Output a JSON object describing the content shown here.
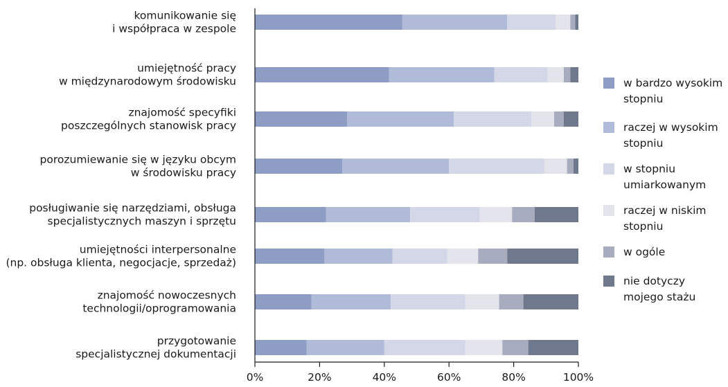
{
  "chart_data": {
    "type": "bar",
    "orientation": "horizontal",
    "stacked": true,
    "percent": true,
    "xlim": [
      0,
      100
    ],
    "xticks": [
      "0%",
      "20%",
      "40%",
      "60%",
      "80%",
      "100%"
    ],
    "grid": false,
    "legend_position": "right",
    "categories": [
      [
        "komunikowanie się",
        "i współpraca w zespole"
      ],
      [
        "umiejętność pracy",
        "w międzynarodowym środowisku"
      ],
      [
        "znajomość specyfiki",
        "poszczególnych stanowisk pracy"
      ],
      [
        "porozumiewanie się w języku obcym",
        "w środowisku pracy"
      ],
      [
        "posługiwanie się narzędziami, obsługa",
        "specjalistycznych maszyn i sprzętu"
      ],
      [
        "umiejętności interpersonalne",
        "(np. obsługa klienta, negocjacje, sprzedaż)"
      ],
      [
        "znajomość nowoczesnych",
        "technologii/oprogramowania"
      ],
      [
        "przygotowanie",
        "specjalistycznej dokumentacji"
      ]
    ],
    "series": [
      {
        "name": [
          "w bardzo wysokim",
          "stopniu"
        ],
        "color": "#8e9dc4",
        "values": [
          45.5,
          41.5,
          28.5,
          27.0,
          22.0,
          21.5,
          17.5,
          16.0
        ]
      },
      {
        "name": [
          "raczej w wysokim",
          "stopniu"
        ],
        "color": "#b0bad9",
        "values": [
          32.5,
          32.5,
          33.0,
          33.0,
          26.0,
          21.0,
          24.5,
          24.0
        ]
      },
      {
        "name": [
          "w stopniu",
          "umiarkowanym"
        ],
        "color": "#d3d7e8",
        "values": [
          15.0,
          16.5,
          24.0,
          29.5,
          21.5,
          17.0,
          23.0,
          25.0
        ]
      },
      {
        "name": [
          "raczej w niskim",
          "stopniu"
        ],
        "color": "#e3e4ec",
        "values": [
          4.5,
          5.0,
          7.0,
          7.0,
          10.0,
          9.5,
          10.5,
          11.5
        ]
      },
      {
        "name": [
          "w ogóle"
        ],
        "color": "#a7adbf",
        "values": [
          1.5,
          2.0,
          3.0,
          2.0,
          7.0,
          9.0,
          7.5,
          8.0
        ]
      },
      {
        "name": [
          "nie dotyczy",
          "mojego stażu"
        ],
        "color": "#6f788d",
        "values": [
          1.0,
          2.5,
          4.5,
          1.5,
          13.5,
          22.0,
          17.0,
          15.5
        ]
      }
    ]
  }
}
